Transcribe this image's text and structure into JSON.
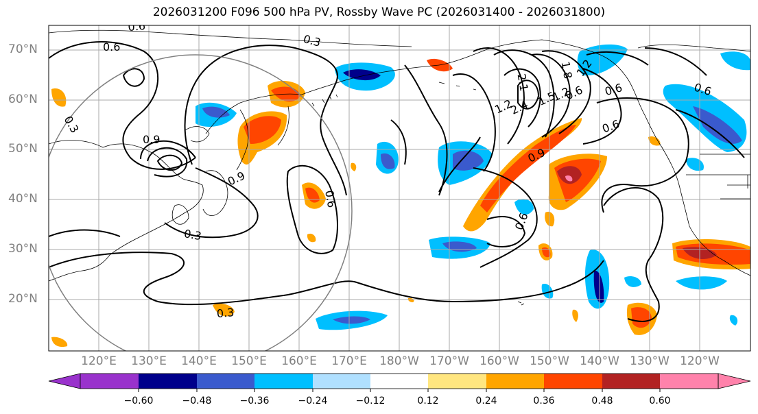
{
  "title": "2026031200 F096 500 hPa PV, Rossby Wave PC (2026031400 - 2026031800)",
  "latitude_labels": [
    "70°N",
    "60°N",
    "50°N",
    "40°N",
    "30°N",
    "20°N"
  ],
  "longitude_labels": [
    "120°E",
    "130°E",
    "140°E",
    "150°E",
    "160°E",
    "170°E",
    "180°W",
    "170°W",
    "160°W",
    "150°W",
    "140°W",
    "130°W",
    "120°W"
  ],
  "colorbar": {
    "tick_labels": [
      "−0.60",
      "−0.48",
      "−0.36",
      "−0.24",
      "−0.12",
      "0.12",
      "0.24",
      "0.36",
      "0.48",
      "0.60"
    ],
    "colors": [
      "#9932cc",
      "#00008b",
      "#3a5acd",
      "#00bfff",
      "#b0e0ff",
      "#ffffff",
      "#ffe680",
      "#ffa500",
      "#ff4500",
      "#b22222",
      "#ff82ab"
    ]
  },
  "contour_labels": [
    "0.6",
    "0.6",
    "0.3",
    "0.3",
    "0.9",
    "0.9",
    "0.3",
    "0.6",
    "1.2",
    "0.6",
    "0.6",
    "0.9",
    "0.6",
    "0.6",
    "0.3",
    "2.1",
    "1.8",
    "2.4",
    "1.5",
    "1.2",
    "1.2",
    "0.6"
  ]
}
